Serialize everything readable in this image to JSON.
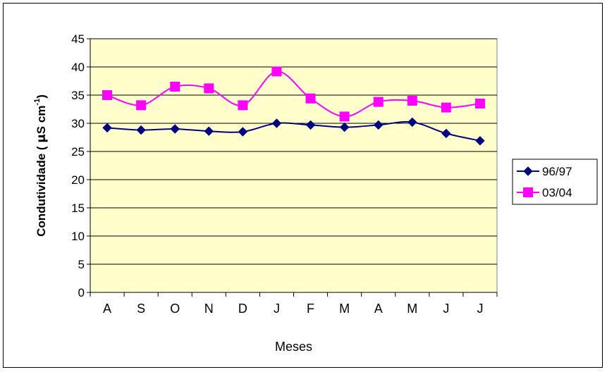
{
  "chart_data": {
    "type": "line",
    "title": "",
    "xlabel": "Meses",
    "ylabel": "Condutividade  ( μS cm-1)",
    "ylabel_parts": {
      "main": "Condutividade  ( ",
      "mu": "μ",
      "unit": "S cm",
      "exp": "-1",
      "close": ")"
    },
    "categories": [
      "A",
      "S",
      "O",
      "N",
      "D",
      "J",
      "F",
      "M",
      "A",
      "M",
      "J",
      "J"
    ],
    "ylim": [
      0,
      45
    ],
    "yticks": [
      0,
      5,
      10,
      15,
      20,
      25,
      30,
      35,
      40,
      45
    ],
    "grid": true,
    "legend": "right",
    "plot_background": "#FFFFCC",
    "series": [
      {
        "name": "96/97",
        "color": "#000080",
        "marker": "diamond",
        "values": [
          29.2,
          28.8,
          29.0,
          28.6,
          28.5,
          30.0,
          29.7,
          29.3,
          29.7,
          30.2,
          28.2,
          26.9
        ]
      },
      {
        "name": "03/04",
        "color": "#FF00FF",
        "marker": "square",
        "values": [
          35.0,
          33.2,
          36.5,
          36.2,
          33.2,
          39.2,
          34.4,
          31.2,
          33.8,
          34.0,
          32.8,
          33.5
        ]
      }
    ]
  }
}
